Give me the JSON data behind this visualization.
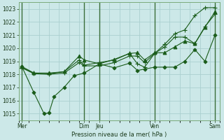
{
  "xlabel": "Pression niveau de la mer( hPa )",
  "bg_color": "#cce8e8",
  "grid_color": "#aacfcf",
  "line_color": "#1a5c1a",
  "ylim": [
    1014.5,
    1023.5
  ],
  "yticks": [
    1015,
    1016,
    1017,
    1018,
    1019,
    1020,
    1021,
    1022,
    1023
  ],
  "xlim": [
    0,
    20
  ],
  "xtick_positions": [
    0.3,
    6.5,
    8.0,
    13.5,
    19.5
  ],
  "xtick_labels": [
    "Mer",
    "Dim",
    "Jeu",
    "Ven",
    "Sam"
  ],
  "vline_positions": [
    0.3,
    6.5,
    8.0,
    13.5,
    19.5
  ],
  "series": [
    {
      "x": [
        0.3,
        1.5,
        3.0,
        4.5,
        6.0,
        6.5,
        8.0,
        9.5,
        11.0,
        11.8,
        12.5,
        13.5,
        14.5,
        15.5,
        16.5,
        17.5,
        18.5,
        19.5
      ],
      "y": [
        1018.6,
        1018.1,
        1018.1,
        1018.2,
        1019.4,
        1019.1,
        1018.8,
        1019.15,
        1019.6,
        1019.65,
        1019.1,
        1019.65,
        1019.65,
        1020.1,
        1020.55,
        1020.35,
        1021.6,
        1022.8
      ],
      "marker": "^",
      "markersize": 3.5
    },
    {
      "x": [
        0.3,
        1.5,
        2.5,
        3.0,
        3.5,
        4.5,
        5.5,
        6.5,
        8.0,
        9.5,
        11.0,
        11.8,
        12.5,
        13.5,
        14.5,
        15.5,
        16.5,
        17.5,
        18.5,
        19.5
      ],
      "y": [
        1018.6,
        1016.6,
        1015.0,
        1015.05,
        1016.3,
        1017.0,
        1017.9,
        1018.1,
        1018.8,
        1018.5,
        1018.85,
        1018.3,
        1018.4,
        1018.55,
        1018.55,
        1018.55,
        1019.0,
        1019.9,
        1019.0,
        1021.0
      ],
      "marker": "D",
      "markersize": 2.5
    },
    {
      "x": [
        0.3,
        1.5,
        3.0,
        4.5,
        6.0,
        6.5,
        8.0,
        9.5,
        11.0,
        11.8,
        12.5,
        13.5,
        14.5,
        15.5,
        16.5,
        17.5,
        18.5,
        19.5
      ],
      "y": [
        1018.5,
        1018.1,
        1018.05,
        1018.2,
        1019.1,
        1018.7,
        1018.9,
        1019.1,
        1019.6,
        1018.8,
        1018.55,
        1019.6,
        1020.3,
        1021.1,
        1021.4,
        1022.5,
        1023.1,
        1023.1
      ],
      "marker": "+",
      "markersize": 4.5
    },
    {
      "x": [
        0.3,
        1.5,
        3.0,
        4.5,
        6.0,
        6.5,
        8.0,
        9.5,
        11.0,
        11.8,
        12.5,
        13.5,
        14.5,
        15.5,
        16.5,
        17.5,
        18.5,
        19.5
      ],
      "y": [
        1018.5,
        1018.05,
        1018.0,
        1018.1,
        1018.9,
        1018.65,
        1018.65,
        1018.9,
        1019.4,
        1019.4,
        1018.9,
        1019.6,
        1020.1,
        1020.85,
        1020.85,
        1020.35,
        1021.65,
        1022.6
      ],
      "marker": "+",
      "markersize": 4.5
    }
  ]
}
